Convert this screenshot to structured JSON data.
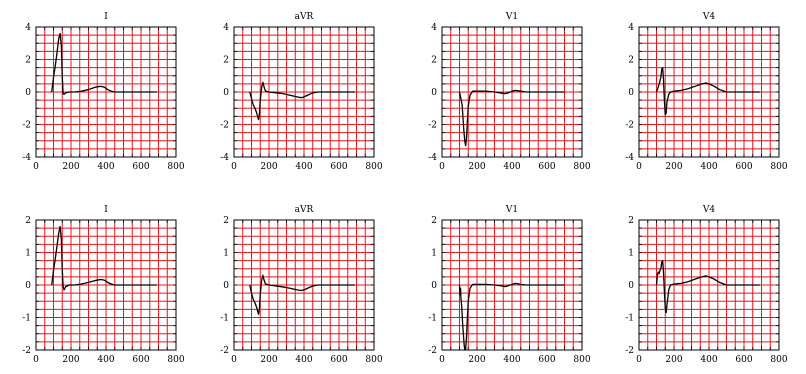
{
  "colors": {
    "grid": "#e8141b",
    "frame": "#000000",
    "trace": "#000000",
    "background": "#ffffff"
  },
  "chart_data": [
    {
      "type": "line",
      "title": "I",
      "grid": true,
      "xlim": [
        0,
        800
      ],
      "ylim": [
        -4,
        4
      ],
      "xticks": [
        "0",
        "200",
        "400",
        "600",
        "800"
      ],
      "yticks": [
        "-4",
        "-2",
        "0",
        "2",
        "4"
      ],
      "series": [
        {
          "x": [
            90,
            100,
            110,
            120,
            130,
            138,
            145,
            150,
            155,
            160,
            170,
            190,
            220,
            260,
            300,
            340,
            370,
            390,
            410,
            430,
            450,
            480,
            520,
            600,
            690
          ],
          "y": [
            0,
            0.9,
            1.6,
            2.4,
            3.3,
            3.6,
            2.8,
            1.0,
            -0.1,
            -0.15,
            -0.05,
            0,
            0,
            0.05,
            0.15,
            0.3,
            0.35,
            0.3,
            0.15,
            0.05,
            0,
            0,
            0,
            0,
            0
          ]
        }
      ]
    },
    {
      "type": "line",
      "title": "aVR",
      "grid": true,
      "xlim": [
        0,
        800
      ],
      "ylim": [
        -4,
        4
      ],
      "xticks": [
        "0",
        "200",
        "400",
        "600",
        "800"
      ],
      "yticks": [
        "-4",
        "-2",
        "0",
        "2",
        "4"
      ],
      "series": [
        {
          "x": [
            90,
            100,
            110,
            120,
            130,
            140,
            145,
            150,
            158,
            165,
            172,
            180,
            200,
            240,
            280,
            320,
            360,
            385,
            400,
            420,
            450,
            480,
            520,
            600,
            690
          ],
          "y": [
            0,
            -0.4,
            -0.8,
            -1.0,
            -1.3,
            -1.7,
            -1.4,
            -0.5,
            0.3,
            0.6,
            0.3,
            0.05,
            0,
            -0.05,
            -0.1,
            -0.2,
            -0.3,
            -0.35,
            -0.3,
            -0.2,
            -0.05,
            0,
            0,
            0,
            0
          ]
        }
      ]
    },
    {
      "type": "line",
      "title": "V1",
      "grid": true,
      "xlim": [
        0,
        800
      ],
      "ylim": [
        -4,
        4
      ],
      "xticks": [
        "0",
        "200",
        "400",
        "600",
        "800"
      ],
      "yticks": [
        "-4",
        "-2",
        "0",
        "2",
        "4"
      ],
      "series": [
        {
          "x": [
            100,
            108,
            115,
            120,
            125,
            130,
            135,
            140,
            145,
            150,
            160,
            175,
            200,
            250,
            300,
            330,
            360,
            380,
            400,
            420,
            450,
            480,
            520,
            600,
            700
          ],
          "y": [
            0,
            -0.4,
            -0.8,
            -1.6,
            -2.4,
            -3.0,
            -3.3,
            -2.8,
            -1.8,
            -0.9,
            -0.2,
            0.05,
            0.05,
            0.05,
            0,
            -0.05,
            -0.1,
            -0.05,
            0.05,
            0.1,
            0.05,
            0,
            0,
            0,
            0
          ]
        }
      ]
    },
    {
      "type": "line",
      "title": "V4",
      "grid": true,
      "xlim": [
        0,
        800
      ],
      "ylim": [
        -4,
        4
      ],
      "xticks": [
        "0",
        "200",
        "400",
        "600",
        "800"
      ],
      "yticks": [
        "-4",
        "-2",
        "0",
        "2",
        "4"
      ],
      "series": [
        {
          "x": [
            100,
            110,
            118,
            125,
            130,
            135,
            140,
            145,
            150,
            155,
            160,
            170,
            180,
            200,
            240,
            280,
            320,
            360,
            380,
            400,
            430,
            460,
            500,
            600,
            690
          ],
          "y": [
            0,
            0.3,
            0.6,
            0.9,
            1.4,
            1.5,
            0.8,
            -0.5,
            -1.4,
            -1.3,
            -0.6,
            -0.15,
            0,
            0.05,
            0.1,
            0.2,
            0.35,
            0.5,
            0.55,
            0.5,
            0.35,
            0.15,
            0,
            0,
            0
          ]
        }
      ]
    },
    {
      "type": "line",
      "title": "I",
      "grid": true,
      "xlim": [
        0,
        800
      ],
      "ylim": [
        -2,
        2
      ],
      "xticks": [
        "0",
        "200",
        "400",
        "600",
        "800"
      ],
      "yticks": [
        "-2",
        "-1",
        "0",
        "1",
        "2"
      ],
      "series": [
        {
          "x": [
            90,
            100,
            110,
            120,
            130,
            138,
            145,
            150,
            155,
            160,
            170,
            190,
            220,
            260,
            300,
            340,
            370,
            390,
            410,
            430,
            450,
            480,
            520,
            600,
            690
          ],
          "y": [
            0,
            0.45,
            0.8,
            1.2,
            1.6,
            1.8,
            1.4,
            0.5,
            -0.05,
            -0.15,
            -0.05,
            0,
            0,
            0.03,
            0.08,
            0.14,
            0.17,
            0.15,
            0.08,
            0.03,
            0,
            0,
            0,
            0,
            0
          ]
        }
      ]
    },
    {
      "type": "line",
      "title": "aVR",
      "grid": true,
      "xlim": [
        0,
        800
      ],
      "ylim": [
        -2,
        2
      ],
      "xticks": [
        "0",
        "200",
        "400",
        "600",
        "800"
      ],
      "yticks": [
        "-2",
        "-1",
        "0",
        "1",
        "2"
      ],
      "series": [
        {
          "x": [
            90,
            100,
            110,
            120,
            130,
            140,
            145,
            150,
            158,
            165,
            172,
            180,
            200,
            240,
            280,
            320,
            360,
            385,
            400,
            420,
            450,
            480,
            520,
            600,
            690
          ],
          "y": [
            0,
            -0.25,
            -0.45,
            -0.55,
            -0.7,
            -0.9,
            -0.75,
            -0.3,
            0.15,
            0.3,
            0.15,
            0.03,
            0,
            -0.03,
            -0.06,
            -0.1,
            -0.15,
            -0.17,
            -0.15,
            -0.1,
            -0.03,
            0,
            0,
            0,
            0
          ]
        }
      ]
    },
    {
      "type": "line",
      "title": "V1",
      "grid": true,
      "xlim": [
        0,
        800
      ],
      "ylim": [
        -2,
        2
      ],
      "xticks": [
        "0",
        "200",
        "400",
        "600",
        "800"
      ],
      "yticks": [
        "-2",
        "-1",
        "0",
        "1",
        "2"
      ],
      "series": [
        {
          "x": [
            100,
            103,
            106,
            108,
            112,
            115,
            118,
            122,
            126,
            130,
            135,
            140,
            145,
            150,
            160,
            175,
            200,
            250,
            300,
            330,
            360,
            380,
            400,
            420,
            450,
            480,
            520,
            600,
            700
          ],
          "y": [
            0,
            -0.3,
            -0.1,
            -0.4,
            -0.6,
            -0.9,
            -1.2,
            -1.5,
            -1.8,
            -2.0,
            -2.0,
            -1.6,
            -1.0,
            -0.5,
            -0.1,
            0.02,
            0.02,
            0.02,
            0,
            -0.02,
            -0.05,
            -0.02,
            0.02,
            0.05,
            0.02,
            0,
            0,
            0,
            0
          ]
        }
      ]
    },
    {
      "type": "line",
      "title": "V4",
      "grid": true,
      "xlim": [
        0,
        800
      ],
      "ylim": [
        -2,
        2
      ],
      "xticks": [
        "0",
        "200",
        "400",
        "600",
        "800"
      ],
      "yticks": [
        "-2",
        "-1",
        "0",
        "1",
        "2"
      ],
      "series": [
        {
          "x": [
            100,
            105,
            110,
            115,
            120,
            125,
            130,
            135,
            140,
            145,
            150,
            155,
            160,
            170,
            180,
            200,
            240,
            280,
            320,
            360,
            380,
            400,
            430,
            460,
            500,
            600,
            690
          ],
          "y": [
            0,
            0.3,
            0.4,
            0.35,
            0.45,
            0.5,
            0.7,
            0.75,
            0.4,
            -0.2,
            -0.7,
            -0.85,
            -0.6,
            -0.15,
            0,
            0.03,
            0.05,
            0.1,
            0.18,
            0.25,
            0.28,
            0.25,
            0.18,
            0.08,
            0,
            0,
            0
          ]
        }
      ]
    }
  ]
}
